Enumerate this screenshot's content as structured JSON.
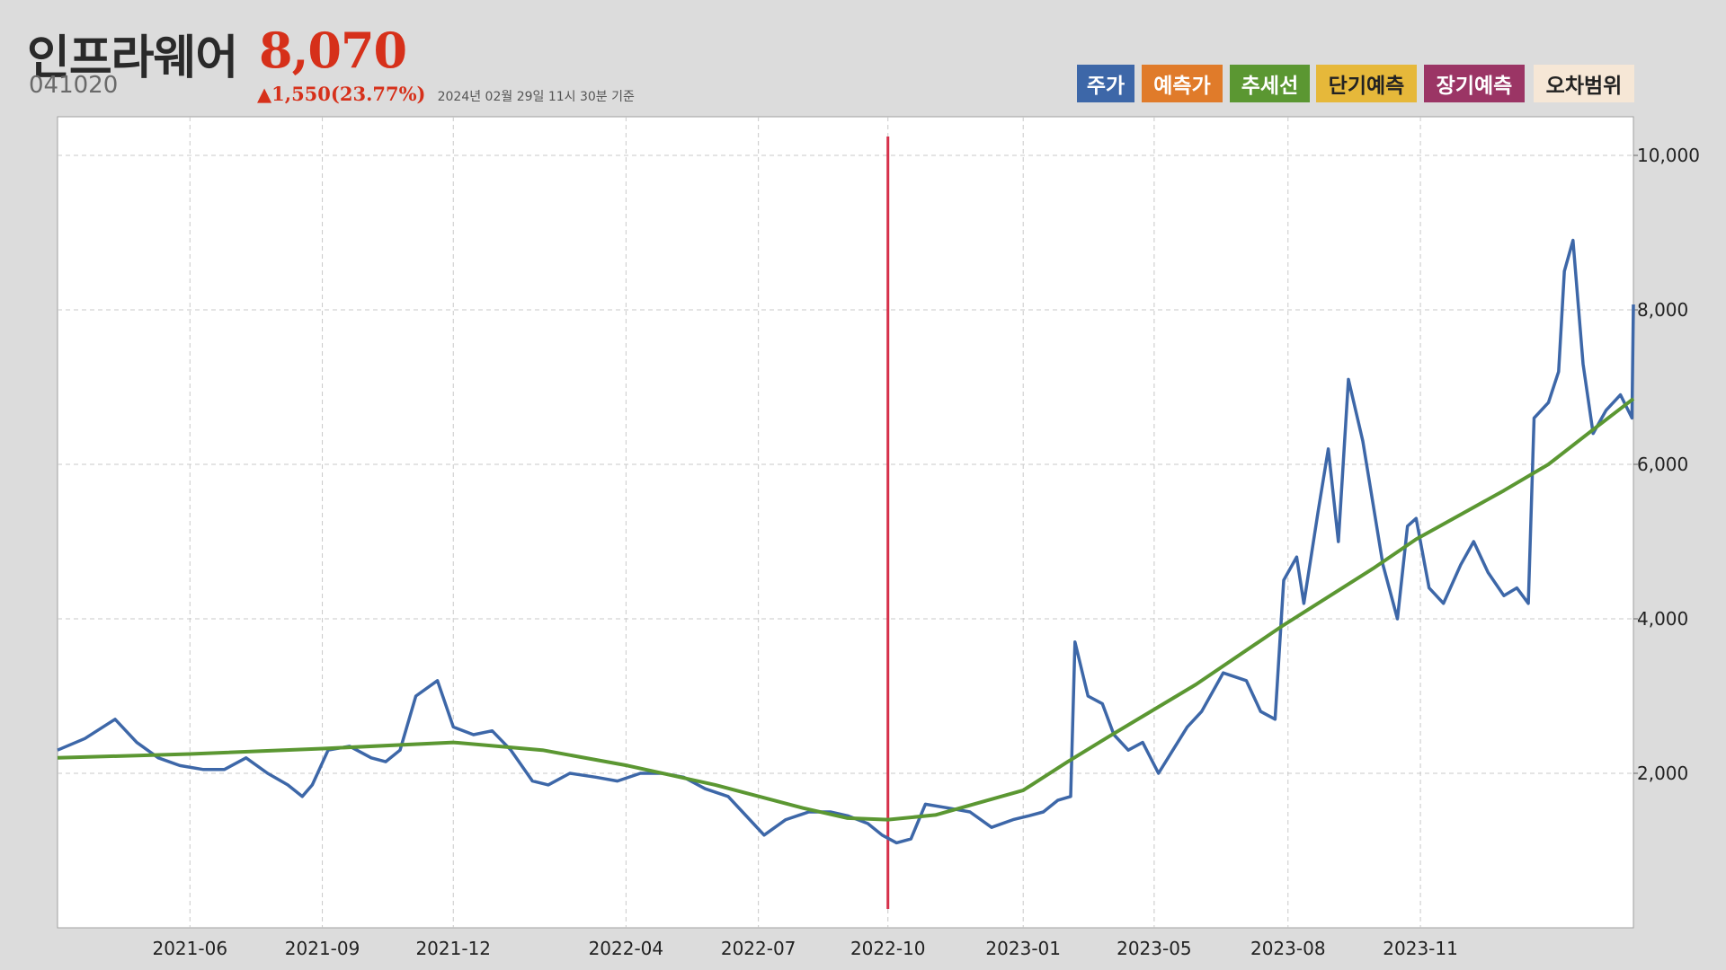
{
  "header": {
    "name": "인프라웨어",
    "price": "8,070",
    "code": "041020",
    "change": "▲1,550(23.77%)",
    "as_of": "2024년 02월 29일 11시 30분 기준"
  },
  "legend": {
    "price": "주가",
    "prediction": "예측가",
    "trend": "추세선",
    "short_term": "단기예측",
    "long_term": "장기예측",
    "error_range": "오차범위"
  },
  "colors": {
    "price": "#3d67a8",
    "prediction": "#e07b2a",
    "trend": "#5b9732",
    "short_term": "#e6b83a",
    "long_term": "#9b3565",
    "error_range": "#f6e7d6",
    "marker_line": "#d6304a",
    "header_price": "#d6301a"
  },
  "chart_data": {
    "type": "line",
    "x_tick_labels": [
      "2021-06",
      "2021-09",
      "2021-12",
      "2022-04",
      "2022-07",
      "2022-10",
      "2023-01",
      "2023-05",
      "2023-08",
      "2023-11"
    ],
    "x_tick_dates": [
      "2021-06-01",
      "2021-09-01",
      "2021-12-01",
      "2022-03-31",
      "2022-07-01",
      "2022-09-29",
      "2023-01-01",
      "2023-04-02",
      "2023-07-04",
      "2023-10-04"
    ],
    "x_range": [
      "2021-03-01",
      "2024-02-29"
    ],
    "y_ticks": [
      2000,
      4000,
      6000,
      8000,
      10000
    ],
    "y_tick_labels": [
      "2,000",
      "4,000",
      "6,000",
      "8,000",
      "10,000"
    ],
    "ylim": [
      0,
      10500
    ],
    "grid": true,
    "vertical_marker_date": "2022-09-29",
    "series": [
      {
        "name": "주가",
        "x": [
          "2021-03-01",
          "2021-03-20",
          "2021-04-10",
          "2021-04-25",
          "2021-05-10",
          "2021-05-25",
          "2021-06-10",
          "2021-06-25",
          "2021-07-10",
          "2021-07-25",
          "2021-08-08",
          "2021-08-18",
          "2021-08-25",
          "2021-09-05",
          "2021-09-20",
          "2021-10-05",
          "2021-10-15",
          "2021-10-25",
          "2021-11-05",
          "2021-11-20",
          "2021-12-01",
          "2021-12-15",
          "2021-12-28",
          "2022-01-10",
          "2022-01-25",
          "2022-02-05",
          "2022-02-20",
          "2022-03-10",
          "2022-03-25",
          "2022-04-10",
          "2022-04-25",
          "2022-05-10",
          "2022-05-25",
          "2022-06-10",
          "2022-06-20",
          "2022-07-05",
          "2022-07-20",
          "2022-08-05",
          "2022-08-20",
          "2022-09-01",
          "2022-09-15",
          "2022-09-25",
          "2022-10-05",
          "2022-10-15",
          "2022-10-25",
          "2022-11-10",
          "2022-11-25",
          "2022-12-10",
          "2022-12-25",
          "2023-01-05",
          "2023-01-15",
          "2023-01-25",
          "2023-02-03",
          "2023-02-06",
          "2023-02-15",
          "2023-02-25",
          "2023-03-05",
          "2023-03-15",
          "2023-03-25",
          "2023-04-05",
          "2023-04-15",
          "2023-04-25",
          "2023-05-05",
          "2023-05-20",
          "2023-06-05",
          "2023-06-15",
          "2023-06-25",
          "2023-07-01",
          "2023-07-10",
          "2023-07-15",
          "2023-07-25",
          "2023-08-01",
          "2023-08-08",
          "2023-08-15",
          "2023-08-25",
          "2023-09-01",
          "2023-09-08",
          "2023-09-18",
          "2023-09-25",
          "2023-10-01",
          "2023-10-10",
          "2023-10-20",
          "2023-11-01",
          "2023-11-10",
          "2023-11-20",
          "2023-12-01",
          "2023-12-10",
          "2023-12-18",
          "2023-12-22",
          "2024-01-01",
          "2024-01-08",
          "2024-01-12",
          "2024-01-18",
          "2024-01-25",
          "2024-02-01",
          "2024-02-10",
          "2024-02-20",
          "2024-02-28",
          "2024-02-29"
        ],
        "values": [
          2300,
          2450,
          2700,
          2400,
          2200,
          2100,
          2050,
          2050,
          2200,
          2000,
          1850,
          1700,
          1850,
          2300,
          2350,
          2200,
          2150,
          2300,
          3000,
          3200,
          2600,
          2500,
          2550,
          2300,
          1900,
          1850,
          2000,
          1950,
          1900,
          2000,
          2000,
          1950,
          1800,
          1700,
          1500,
          1200,
          1400,
          1500,
          1500,
          1450,
          1350,
          1200,
          1100,
          1150,
          1600,
          1550,
          1500,
          1300,
          1400,
          1450,
          1500,
          1650,
          1700,
          3700,
          3000,
          2900,
          2500,
          2300,
          2400,
          2000,
          2300,
          2600,
          2800,
          3300,
          3200,
          2800,
          2700,
          4500,
          4800,
          4200,
          5400,
          6200,
          5000,
          7100,
          6300,
          5500,
          4700,
          4000,
          5200,
          5300,
          4400,
          4200,
          4700,
          5000,
          4600,
          4300,
          4400,
          4200,
          6600,
          6800,
          7200,
          8500,
          8900,
          7300,
          6400,
          6700,
          6900,
          6600,
          8070
        ]
      },
      {
        "name": "추세선",
        "x": [
          "2021-03-01",
          "2021-06-01",
          "2021-09-01",
          "2021-12-01",
          "2022-02-01",
          "2022-04-01",
          "2022-06-01",
          "2022-08-01",
          "2022-09-01",
          "2022-09-29",
          "2022-11-01",
          "2023-01-01",
          "2023-02-01",
          "2023-03-01",
          "2023-05-01",
          "2023-07-01",
          "2023-09-01",
          "2023-10-01",
          "2023-11-01",
          "2023-12-01",
          "2024-01-01",
          "2024-02-01",
          "2024-02-29"
        ],
        "values": [
          2200,
          2250,
          2320,
          2400,
          2300,
          2100,
          1850,
          1550,
          1420,
          1400,
          1460,
          1780,
          2150,
          2470,
          3150,
          3920,
          4650,
          5030,
          5350,
          5660,
          6000,
          6450,
          6850
        ]
      }
    ]
  }
}
